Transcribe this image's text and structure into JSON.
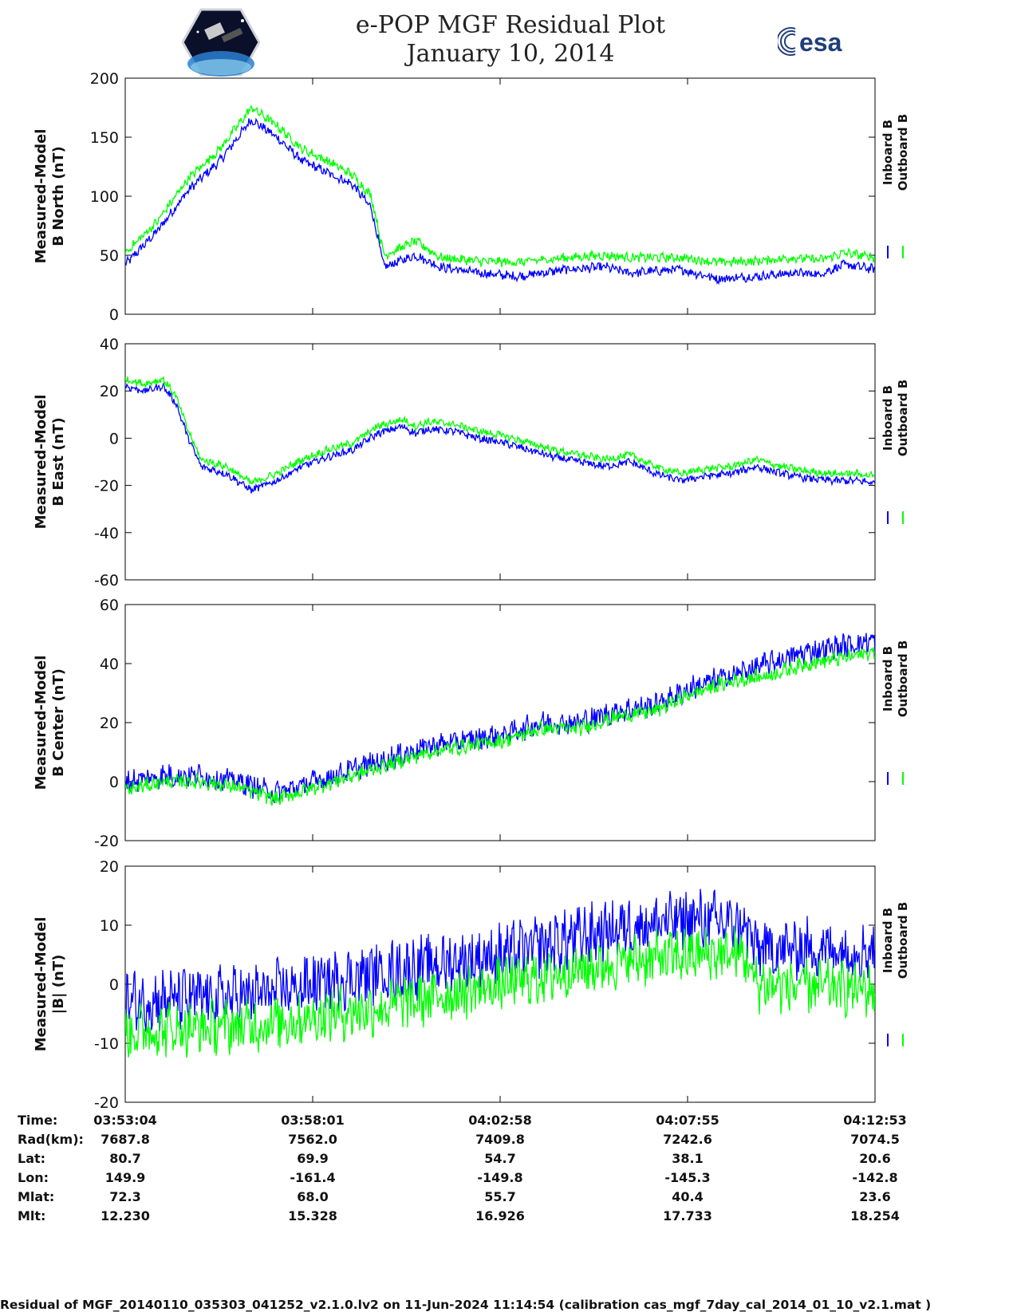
{
  "header": {
    "title": "e-POP MGF Residual Plot",
    "date": "January 10, 2014",
    "logos": [
      "cassiope-mission-logo",
      "esa-logo"
    ],
    "esa_text": "esa"
  },
  "legend": {
    "inboard": "Inboard B",
    "outboard": "Outboard B"
  },
  "colors": {
    "inboard": "#0000ff",
    "outboard": "#00ff00",
    "axis": "#000000"
  },
  "chart_data": [
    {
      "type": "line",
      "ylabel": [
        "Measured-Model",
        "B North (nT)"
      ],
      "ylim": [
        0,
        200
      ],
      "yticks": [
        "0",
        "50",
        "100",
        "150",
        "200"
      ],
      "xlim": [
        0,
        1188
      ],
      "x_tick_seconds": [
        0,
        297,
        594,
        891,
        1188
      ],
      "series": [
        {
          "name": "Inboard B",
          "points": [
            [
              0,
              42
            ],
            [
              50,
              70
            ],
            [
              100,
              105
            ],
            [
              150,
              130
            ],
            [
              200,
              165
            ],
            [
              240,
              150
            ],
            [
              280,
              130
            ],
            [
              320,
              120
            ],
            [
              360,
              110
            ],
            [
              390,
              90
            ],
            [
              410,
              40
            ],
            [
              460,
              50
            ],
            [
              500,
              40
            ],
            [
              560,
              35
            ],
            [
              620,
              32
            ],
            [
              700,
              38
            ],
            [
              760,
              40
            ],
            [
              800,
              35
            ],
            [
              880,
              38
            ],
            [
              940,
              30
            ],
            [
              1000,
              32
            ],
            [
              1060,
              35
            ],
            [
              1100,
              34
            ],
            [
              1140,
              42
            ],
            [
              1188,
              38
            ]
          ]
        },
        {
          "name": "Outboard B",
          "points": [
            [
              0,
              52
            ],
            [
              50,
              78
            ],
            [
              100,
              115
            ],
            [
              150,
              140
            ],
            [
              200,
              175
            ],
            [
              240,
              160
            ],
            [
              280,
              140
            ],
            [
              320,
              130
            ],
            [
              360,
              118
            ],
            [
              390,
              100
            ],
            [
              410,
              50
            ],
            [
              460,
              62
            ],
            [
              500,
              48
            ],
            [
              560,
              45
            ],
            [
              620,
              44
            ],
            [
              700,
              48
            ],
            [
              760,
              50
            ],
            [
              800,
              48
            ],
            [
              880,
              48
            ],
            [
              940,
              44
            ],
            [
              1000,
              45
            ],
            [
              1060,
              48
            ],
            [
              1100,
              46
            ],
            [
              1140,
              52
            ],
            [
              1188,
              48
            ]
          ]
        }
      ]
    },
    {
      "type": "line",
      "ylabel": [
        "Measured-Model",
        "B East (nT)"
      ],
      "ylim": [
        -60,
        40
      ],
      "yticks": [
        "-60",
        "-40",
        "-20",
        "0",
        "20",
        "40"
      ],
      "xlim": [
        0,
        1188
      ],
      "series": [
        {
          "name": "Inboard B",
          "points": [
            [
              0,
              22
            ],
            [
              30,
              20
            ],
            [
              60,
              22
            ],
            [
              80,
              15
            ],
            [
              100,
              0
            ],
            [
              120,
              -12
            ],
            [
              160,
              -15
            ],
            [
              200,
              -22
            ],
            [
              240,
              -18
            ],
            [
              280,
              -12
            ],
            [
              320,
              -8
            ],
            [
              360,
              -5
            ],
            [
              400,
              2
            ],
            [
              440,
              5
            ],
            [
              460,
              2
            ],
            [
              480,
              4
            ],
            [
              520,
              3
            ],
            [
              560,
              0
            ],
            [
              600,
              -2
            ],
            [
              640,
              -5
            ],
            [
              680,
              -8
            ],
            [
              720,
              -10
            ],
            [
              760,
              -12
            ],
            [
              800,
              -10
            ],
            [
              840,
              -15
            ],
            [
              880,
              -18
            ],
            [
              920,
              -16
            ],
            [
              960,
              -15
            ],
            [
              1000,
              -12
            ],
            [
              1040,
              -15
            ],
            [
              1080,
              -17
            ],
            [
              1120,
              -18
            ],
            [
              1160,
              -18
            ],
            [
              1188,
              -19
            ]
          ]
        },
        {
          "name": "Outboard B",
          "points": [
            [
              0,
              25
            ],
            [
              30,
              23
            ],
            [
              60,
              25
            ],
            [
              80,
              18
            ],
            [
              100,
              3
            ],
            [
              120,
              -9
            ],
            [
              160,
              -12
            ],
            [
              200,
              -19
            ],
            [
              240,
              -15
            ],
            [
              280,
              -9
            ],
            [
              320,
              -5
            ],
            [
              360,
              -2
            ],
            [
              400,
              5
            ],
            [
              440,
              8
            ],
            [
              460,
              5
            ],
            [
              480,
              7
            ],
            [
              520,
              6
            ],
            [
              560,
              3
            ],
            [
              600,
              1
            ],
            [
              640,
              -2
            ],
            [
              680,
              -5
            ],
            [
              720,
              -7
            ],
            [
              760,
              -9
            ],
            [
              800,
              -7
            ],
            [
              840,
              -12
            ],
            [
              880,
              -15
            ],
            [
              920,
              -13
            ],
            [
              960,
              -12
            ],
            [
              1000,
              -9
            ],
            [
              1040,
              -12
            ],
            [
              1080,
              -14
            ],
            [
              1120,
              -15
            ],
            [
              1160,
              -15
            ],
            [
              1188,
              -16
            ]
          ]
        }
      ]
    },
    {
      "type": "line",
      "ylabel": [
        "Measured-Model",
        "B Center (nT)"
      ],
      "ylim": [
        -20,
        60
      ],
      "yticks": [
        "-20",
        "0",
        "20",
        "40",
        "60"
      ],
      "xlim": [
        0,
        1188
      ],
      "series": [
        {
          "name": "Inboard B",
          "points": [
            [
              0,
              0
            ],
            [
              60,
              2
            ],
            [
              120,
              2
            ],
            [
              180,
              0
            ],
            [
              240,
              -4
            ],
            [
              300,
              0
            ],
            [
              360,
              4
            ],
            [
              420,
              8
            ],
            [
              480,
              12
            ],
            [
              540,
              14
            ],
            [
              600,
              16
            ],
            [
              660,
              20
            ],
            [
              720,
              20
            ],
            [
              780,
              24
            ],
            [
              840,
              26
            ],
            [
              900,
              32
            ],
            [
              960,
              36
            ],
            [
              1020,
              40
            ],
            [
              1080,
              44
            ],
            [
              1140,
              46
            ],
            [
              1188,
              48
            ]
          ]
        },
        {
          "name": "Outboard B",
          "points": [
            [
              0,
              -3
            ],
            [
              60,
              0
            ],
            [
              120,
              0
            ],
            [
              180,
              -2
            ],
            [
              240,
              -6
            ],
            [
              300,
              -2
            ],
            [
              360,
              2
            ],
            [
              420,
              6
            ],
            [
              480,
              10
            ],
            [
              540,
              12
            ],
            [
              600,
              14
            ],
            [
              660,
              18
            ],
            [
              720,
              18
            ],
            [
              780,
              22
            ],
            [
              840,
              24
            ],
            [
              900,
              30
            ],
            [
              960,
              34
            ],
            [
              1020,
              36
            ],
            [
              1080,
              40
            ],
            [
              1140,
              42
            ],
            [
              1188,
              44
            ]
          ]
        }
      ]
    },
    {
      "type": "line",
      "ylabel": [
        "Measured-Model",
        "|B| (nT)"
      ],
      "ylim": [
        -20,
        20
      ],
      "yticks": [
        "-20",
        "-10",
        "0",
        "10",
        "20"
      ],
      "xlim": [
        0,
        1188
      ],
      "series": [
        {
          "name": "Inboard B",
          "points": [
            [
              0,
              -3
            ],
            [
              200,
              -2
            ],
            [
              400,
              2
            ],
            [
              600,
              5
            ],
            [
              800,
              10
            ],
            [
              900,
              11
            ],
            [
              980,
              10
            ],
            [
              1000,
              6
            ],
            [
              1188,
              6
            ]
          ]
        },
        {
          "name": "Outboard B",
          "points": [
            [
              0,
              -8
            ],
            [
              200,
              -7
            ],
            [
              400,
              -4
            ],
            [
              600,
              0
            ],
            [
              800,
              4
            ],
            [
              900,
              5
            ],
            [
              980,
              5
            ],
            [
              1000,
              0
            ],
            [
              1188,
              -1
            ]
          ]
        }
      ]
    }
  ],
  "table": {
    "row_labels": [
      "Time:",
      "Rad(km):",
      "Lat:",
      "Lon:",
      "Mlat:",
      "Mlt:"
    ],
    "columns": [
      [
        "03:53:04",
        "7687.8",
        "80.7",
        "149.9",
        "72.3",
        "12.230"
      ],
      [
        "03:58:01",
        "7562.0",
        "69.9",
        "-161.4",
        "68.0",
        "15.328"
      ],
      [
        "04:02:58",
        "7409.8",
        "54.7",
        "-149.8",
        "55.7",
        "16.926"
      ],
      [
        "04:07:55",
        "7242.6",
        "38.1",
        "-145.3",
        "40.4",
        "17.733"
      ],
      [
        "04:12:53",
        "7074.5",
        "20.6",
        "-142.8",
        "23.6",
        "18.254"
      ]
    ]
  },
  "footer": "Residual of MGF_20140110_035303_041252_v2.1.0.lv2 on 11-Jun-2024 11:14:54 (calibration cas_mgf_7day_cal_2014_01_10_v2.1.mat )"
}
